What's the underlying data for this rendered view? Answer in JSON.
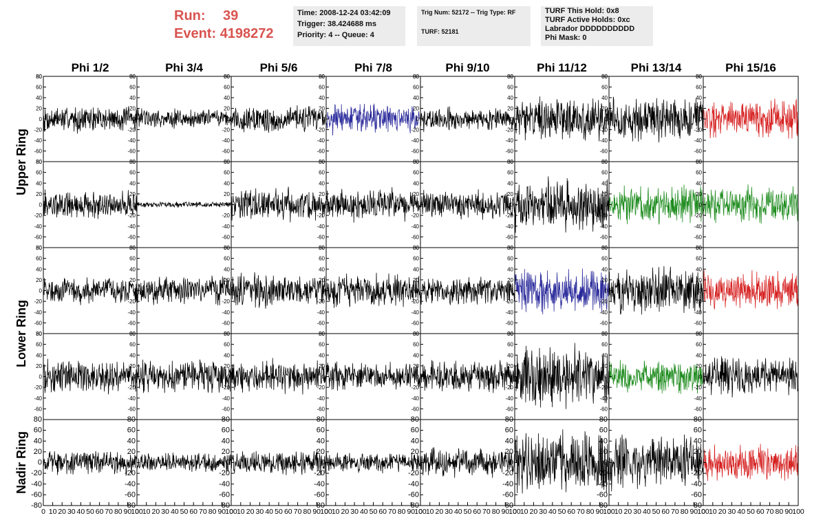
{
  "header": {
    "run_label": "Run:",
    "run_value": "39",
    "event_label": "Event:",
    "event_value": "4198272"
  },
  "info_panel": {
    "time": "Time: 2008-12-24 03:42:09",
    "trigger": "Trigger: 38.424688 ms",
    "priority": "Priority: 4 -- Queue: 4"
  },
  "trig_panel": {
    "trig": "Trig Num: 52172 -- Trig Type: RF",
    "turf": "TURF: 52181"
  },
  "turf_panel": {
    "this_hold": "TURF This Hold: 0x8",
    "active_holds": "TURF Active Holds: 0xc",
    "labrador": "Labrador DDDDDDDDDD",
    "phi_mask": "Phi Mask: 0"
  },
  "colors": {
    "black": "#000000",
    "blue": "#2b2b9c",
    "red": "#d62020",
    "green": "#1e8c1e"
  },
  "chart_data": {
    "type": "line",
    "columns": [
      "Phi 1/2",
      "Phi 3/4",
      "Phi 5/6",
      "Phi 7/8",
      "Phi 9/10",
      "Phi 11/12",
      "Phi 13/14",
      "Phi 15/16"
    ],
    "ring_labels": [
      {
        "text": "Upper Ring",
        "rows": [
          0,
          1
        ]
      },
      {
        "text": "Lower Ring",
        "rows": [
          2,
          3
        ]
      },
      {
        "text": "Nadir Ring",
        "rows": [
          4
        ]
      }
    ],
    "xlim": [
      0,
      100
    ],
    "x_ticks": [
      0,
      10,
      20,
      30,
      40,
      50,
      60,
      70,
      80,
      90,
      100
    ],
    "ylim": [
      -80,
      80
    ],
    "y_ticks": [
      -60,
      -40,
      -20,
      0,
      20,
      40,
      60,
      80
    ],
    "y_tick_labels_last_row": [
      -80,
      -60,
      -40,
      -20,
      0,
      20,
      40,
      60,
      80
    ],
    "grid": false,
    "samples_per_trace": 260,
    "trace_colors": [
      [
        "black",
        "black",
        "black",
        "blue",
        "black",
        "black",
        "black",
        "red"
      ],
      [
        "black",
        "black",
        "black",
        "black",
        "black",
        "black",
        "green",
        "green"
      ],
      [
        "black",
        "black",
        "black",
        "black",
        "black",
        "blue",
        "black",
        "red"
      ],
      [
        "black",
        "black",
        "black",
        "black",
        "black",
        "black",
        "green",
        "black"
      ],
      [
        "black",
        "black",
        "black",
        "black",
        "black",
        "black",
        "black",
        "red"
      ]
    ],
    "trace_amplitude": [
      [
        28,
        22,
        30,
        32,
        25,
        45,
        48,
        40
      ],
      [
        30,
        6,
        35,
        35,
        30,
        55,
        40,
        40
      ],
      [
        28,
        30,
        35,
        35,
        30,
        50,
        50,
        40
      ],
      [
        35,
        35,
        35,
        30,
        35,
        65,
        35,
        40
      ],
      [
        25,
        20,
        25,
        22,
        30,
        65,
        55,
        40
      ]
    ]
  }
}
